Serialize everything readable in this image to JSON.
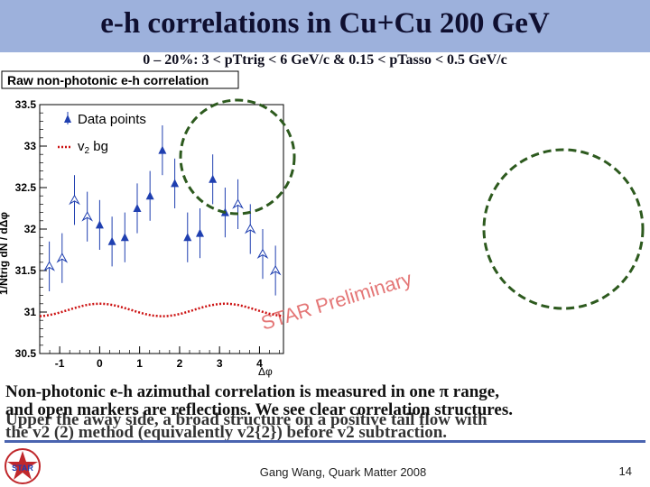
{
  "slide": {
    "title": "e-h correlations in Cu+Cu 200 GeV",
    "subtitle": "0 – 20%: 3 < pTtrig < 6 GeV/c & 0.15 < pTasso < 0.5 GeV/c",
    "caption_line1": "Non-photonic e-h azimuthal correlation is measured in one π range,",
    "caption_line2": "and open markers are reflections. We see clear correlation structures.",
    "caption_line3": "Upper the away side, a broad structure on a positive tail flow with",
    "caption_line4": "the v2 (2) method (equivalently v2{2}) before v2 subtraction.",
    "footer": "Gang Wang, Quark Matter 2008",
    "page_number": "14",
    "logo_text": "STAR"
  },
  "colors": {
    "header_band": "#9db1dc",
    "data_marker": "#1f3fb0",
    "v2_bg": "#cc1111",
    "highlight_circle": "#2d5a1e",
    "watermark": "#e06060"
  },
  "chart_data": {
    "type": "scatter",
    "title": "Raw non-photonic e-h correlation",
    "xlabel": "Δφ",
    "ylabel": "1/Ntrig dN / dΔφ",
    "xlim": [
      -1.5,
      4.6
    ],
    "ylim": [
      30.5,
      33.5
    ],
    "x_ticks": [
      -1,
      0,
      1,
      2,
      3,
      4
    ],
    "y_ticks": [
      30.5,
      31,
      31.5,
      32,
      32.5,
      33,
      33.5
    ],
    "watermark": "STAR Preliminary",
    "legend": {
      "placement": "top-left",
      "entries": [
        "Data points",
        "v2 bg"
      ]
    },
    "series": [
      {
        "name": "Data points",
        "marker": "filled",
        "x": [
          0.0,
          0.31,
          0.63,
          0.94,
          1.26,
          1.57,
          1.88,
          2.2,
          2.51,
          2.83,
          3.14
        ],
        "y": [
          32.05,
          31.85,
          31.9,
          32.25,
          32.4,
          32.95,
          32.55,
          31.9,
          31.95,
          32.6,
          32.2
        ],
        "yerr": [
          0.3,
          0.3,
          0.3,
          0.3,
          0.3,
          0.3,
          0.3,
          0.3,
          0.3,
          0.3,
          0.3
        ]
      },
      {
        "name": "Reflected points",
        "marker": "open",
        "x": [
          -1.26,
          -0.94,
          -0.63,
          -0.31,
          3.46,
          3.77,
          4.08,
          4.4
        ],
        "y": [
          31.55,
          31.65,
          32.35,
          32.15,
          32.3,
          32.0,
          31.7,
          31.5
        ],
        "yerr": [
          0.3,
          0.3,
          0.3,
          0.3,
          0.3,
          0.3,
          0.3,
          0.3
        ]
      },
      {
        "name": "v2 bg",
        "style": "dotted",
        "function": "31.025 + 0.075*cos(2x)"
      }
    ],
    "highlight_circles": [
      {
        "cx": 3.0,
        "cy": 32.5,
        "r_data_x": 1.05
      }
    ]
  }
}
